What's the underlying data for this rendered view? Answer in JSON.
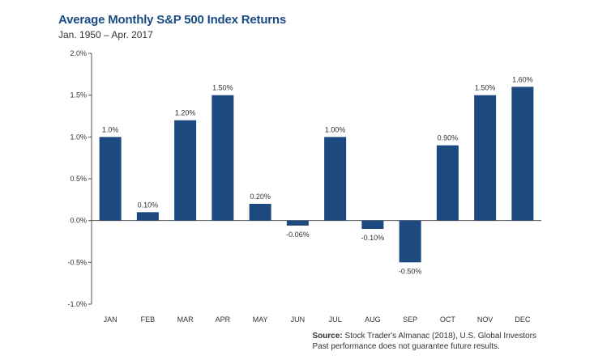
{
  "chart_data": {
    "type": "bar",
    "title": "Average Monthly S&P 500 Index Returns",
    "subtitle": "Jan. 1950 – Apr. 2017",
    "categories": [
      "JAN",
      "FEB",
      "MAR",
      "APR",
      "MAY",
      "JUN",
      "JUL",
      "AUG",
      "SEP",
      "OCT",
      "NOV",
      "DEC"
    ],
    "values": [
      1.0,
      0.1,
      1.2,
      1.5,
      0.2,
      -0.06,
      1.0,
      -0.1,
      -0.5,
      0.9,
      1.5,
      1.6
    ],
    "data_labels": [
      "1.0%",
      "0.10%",
      "1.20%",
      "1.50%",
      "0.20%",
      "-0.06%",
      "1.00%",
      "-0.10%",
      "-0.50%",
      "0.90%",
      "1.50%",
      "1.60%"
    ],
    "yticks": [
      2.0,
      1.5,
      1.0,
      0.5,
      0.0,
      -0.5,
      -1.0
    ],
    "ytick_labels": [
      "2.0%",
      "1.5%",
      "1.0%",
      "0.5%",
      "0.0%",
      "-0.5%",
      "-1.0%"
    ],
    "ylim": [
      -1.0,
      2.0
    ],
    "xlabel": "",
    "ylabel": "",
    "bar_color": "#1c4a80",
    "grid": false
  },
  "source": {
    "label": "Source:",
    "text": " Stock Trader's Almanac (2018), U.S. Global Investors",
    "disclaimer": "Past performance does not guarantee future results."
  }
}
